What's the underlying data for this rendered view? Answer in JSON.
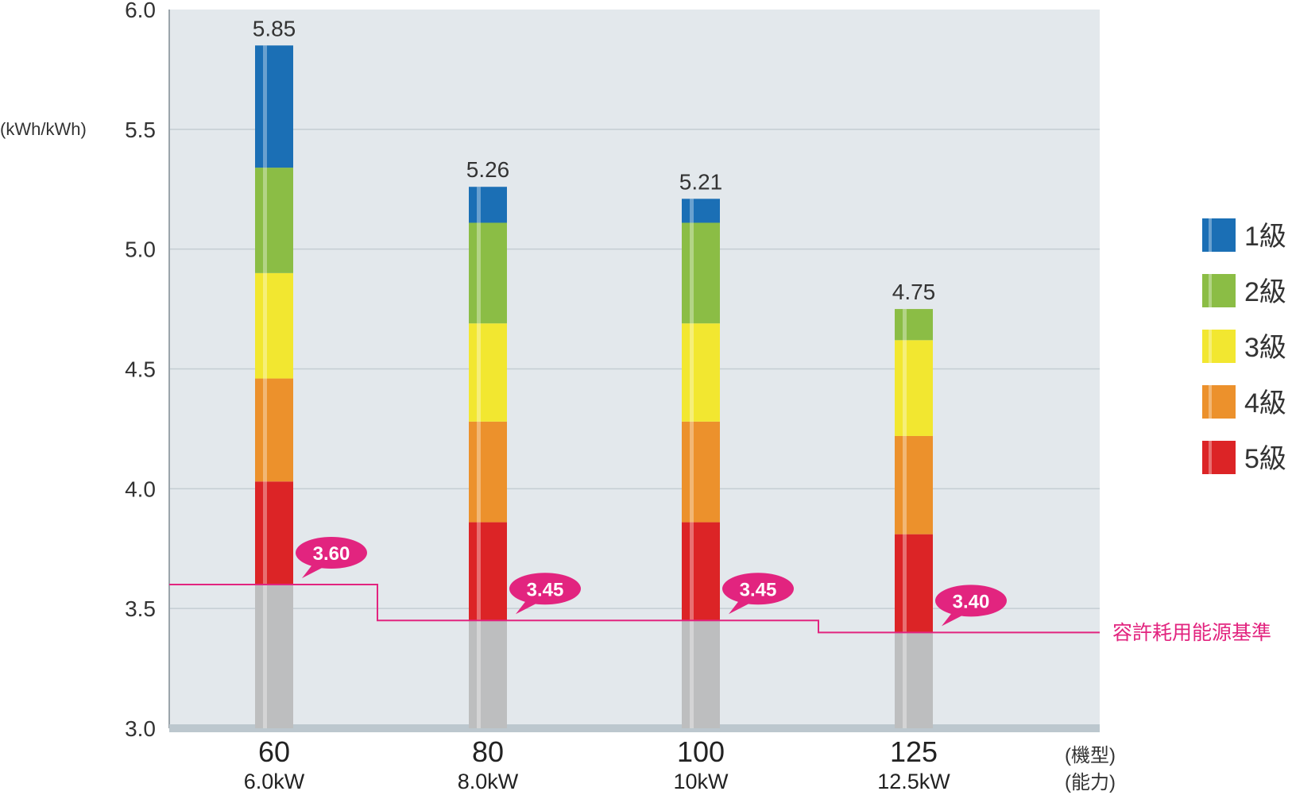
{
  "chart_data": {
    "type": "bar",
    "subtype": "stacked-grade-bands",
    "ylabel": "(kWh/kWh)",
    "ylim": [
      3.0,
      6.0
    ],
    "yticks": [
      "6.0",
      "5.5",
      "5.0",
      "4.5",
      "4.0",
      "3.5",
      "3.0"
    ],
    "grid": true,
    "x_axis_notes": [
      "(機型)",
      "(能力)"
    ],
    "categories": [
      {
        "model": "60",
        "capacity": "6.0kW"
      },
      {
        "model": "80",
        "capacity": "8.0kW"
      },
      {
        "model": "100",
        "capacity": "10kW"
      },
      {
        "model": "125",
        "capacity": "12.5kW"
      }
    ],
    "totals": [
      5.85,
      5.26,
      5.21,
      4.75
    ],
    "total_labels": [
      "5.85",
      "5.26",
      "5.21",
      "4.75"
    ],
    "band_boundaries": [
      {
        "base": 3.6,
        "g5_top": 4.03,
        "g4_top": 4.46,
        "g3_top": 4.9,
        "g2_top": 5.34,
        "g1_top": 5.85
      },
      {
        "base": 3.45,
        "g5_top": 3.86,
        "g4_top": 4.28,
        "g3_top": 4.69,
        "g2_top": 5.11,
        "g1_top": 5.26
      },
      {
        "base": 3.45,
        "g5_top": 3.86,
        "g4_top": 4.28,
        "g3_top": 4.69,
        "g2_top": 5.11,
        "g1_top": 5.21
      },
      {
        "base": 3.4,
        "g5_top": 3.81,
        "g4_top": 4.22,
        "g3_top": 4.62,
        "g2_top": 4.75,
        "g1_top": 4.75
      }
    ],
    "legend_placement": "right",
    "legend": [
      {
        "label": "1級",
        "color": "#1b6fb5"
      },
      {
        "label": "2級",
        "color": "#8bbd45"
      },
      {
        "label": "3級",
        "color": "#f2e730"
      },
      {
        "label": "4級",
        "color": "#ec912c"
      },
      {
        "label": "5級",
        "color": "#dc2426"
      }
    ],
    "base_color": "#bdbebf",
    "standard": {
      "label": "容許耗用能源基準",
      "color": "#e2247f",
      "values": [
        3.6,
        3.45,
        3.45,
        3.4
      ],
      "value_labels": [
        "3.60",
        "3.45",
        "3.45",
        "3.40"
      ]
    },
    "plot_background": "#e3e8ec"
  }
}
